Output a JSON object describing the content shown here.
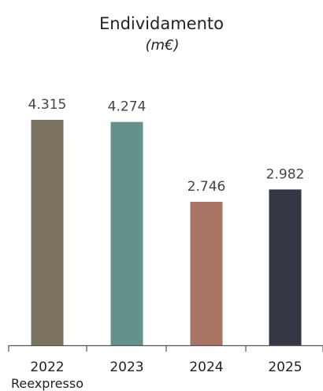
{
  "chart_data": {
    "type": "bar",
    "title": "Endividamento",
    "subtitle": "(m€)",
    "categories": [
      "2022",
      "2023",
      "2024",
      "2025"
    ],
    "category_sublabels": [
      "Reexpresso",
      "",
      "",
      ""
    ],
    "values": [
      4315,
      4274,
      2746,
      2982
    ],
    "value_labels": [
      "4.315",
      "4.274",
      "2.746",
      "2.982"
    ],
    "colors": [
      "#7c7461",
      "#64928b",
      "#a97463",
      "#333743"
    ],
    "xlabel": "",
    "ylabel": "",
    "ylim": [
      0,
      4315
    ],
    "grid": false
  }
}
